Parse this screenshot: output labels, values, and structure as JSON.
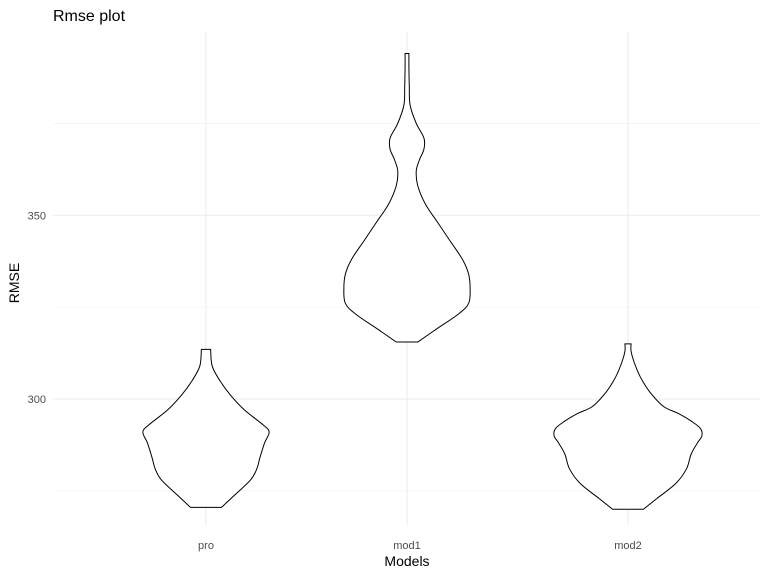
{
  "chart_data": {
    "type": "violin",
    "title": "Rmse plot",
    "xlabel": "Models",
    "ylabel": "RMSE",
    "categories": [
      "pro",
      "mod1",
      "mod2"
    ],
    "y_ticks": [
      300,
      350
    ],
    "ylim": [
      267,
      397
    ],
    "grid": true,
    "legend": "none",
    "colors": {
      "outline": "#000000",
      "fill": "#ffffff",
      "grid": "#ebebeb",
      "tick_text": "#4d4d4d"
    },
    "violins": [
      {
        "category": "pro",
        "y_min": 270.5,
        "y_max": 313.5,
        "profile": [
          [
            270.5,
            0.2
          ],
          [
            274,
            0.38
          ],
          [
            278,
            0.58
          ],
          [
            281,
            0.66
          ],
          [
            284,
            0.7
          ],
          [
            288,
            0.76
          ],
          [
            291,
            0.82
          ],
          [
            293,
            0.74
          ],
          [
            297,
            0.5
          ],
          [
            301,
            0.32
          ],
          [
            305,
            0.18
          ],
          [
            309,
            0.08
          ],
          [
            313.5,
            0.06
          ]
        ]
      },
      {
        "category": "mod1",
        "y_min": 315.5,
        "y_max": 394,
        "profile": [
          [
            315.5,
            0.14
          ],
          [
            319,
            0.38
          ],
          [
            323,
            0.66
          ],
          [
            326,
            0.8
          ],
          [
            330,
            0.82
          ],
          [
            334,
            0.8
          ],
          [
            338,
            0.72
          ],
          [
            343,
            0.56
          ],
          [
            348,
            0.4
          ],
          [
            353,
            0.24
          ],
          [
            358,
            0.14
          ],
          [
            362,
            0.12
          ],
          [
            365,
            0.16
          ],
          [
            368,
            0.22
          ],
          [
            371,
            0.22
          ],
          [
            375,
            0.12
          ],
          [
            380,
            0.04
          ],
          [
            385,
            0.03
          ],
          [
            390,
            0.025
          ],
          [
            394,
            0.025
          ]
        ]
      },
      {
        "category": "mod2",
        "y_min": 270,
        "y_max": 315,
        "profile": [
          [
            270,
            0.2
          ],
          [
            273,
            0.38
          ],
          [
            277,
            0.62
          ],
          [
            281,
            0.76
          ],
          [
            285,
            0.82
          ],
          [
            288,
            0.9
          ],
          [
            290,
            0.96
          ],
          [
            292,
            0.94
          ],
          [
            294,
            0.82
          ],
          [
            296,
            0.66
          ],
          [
            298,
            0.46
          ],
          [
            302,
            0.28
          ],
          [
            306,
            0.16
          ],
          [
            310,
            0.08
          ],
          [
            313,
            0.04
          ],
          [
            315,
            0.04
          ]
        ]
      }
    ]
  }
}
